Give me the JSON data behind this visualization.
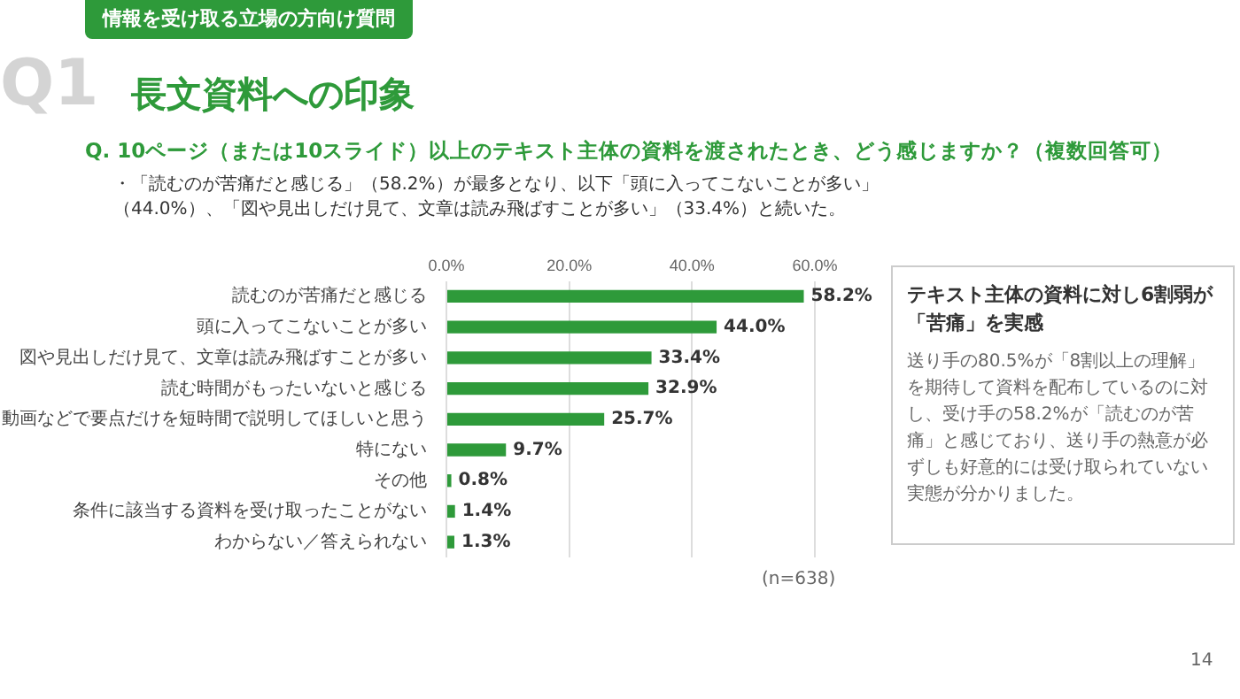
{
  "chart_data": {
    "type": "bar",
    "orientation": "horizontal",
    "title": "長文資料への印象",
    "subtitle": "Q. 10ページ（または10スライド）以上のテキスト主体の資料を渡されたとき、どう感じますか？（複数回答可）",
    "categories": [
      "読むのが苦痛だと感じる",
      "頭に入ってこないことが多い",
      "図や見出しだけ見て、文章は読み飛ばすことが多い",
      "読む時間がもったいないと感じる",
      "動画などで要点だけを短時間で説明してほしいと思う",
      "特にない",
      "その他",
      "条件に該当する資料を受け取ったことがない",
      "わからない／答えられない"
    ],
    "values": [
      58.2,
      44.0,
      33.4,
      32.9,
      25.7,
      9.7,
      0.8,
      1.4,
      1.3
    ],
    "value_labels": [
      "58.2%",
      "44.0%",
      "33.4%",
      "32.9%",
      "25.7%",
      "9.7%",
      "0.8%",
      "1.4%",
      "1.3%"
    ],
    "color": "#2e9a3a",
    "xlim": [
      0,
      60
    ],
    "xticks": [
      {
        "value": 0,
        "label": "0.0%"
      },
      {
        "value": 20,
        "label": "20.0%"
      },
      {
        "value": 40,
        "label": "40.0%"
      },
      {
        "value": 60,
        "label": "60.0%"
      }
    ],
    "grid": "x",
    "legend": false,
    "annotations": [
      "情報を受け取る立場の方向け質問",
      "Q1",
      "・「読むのが苦痛だと感じる」（58.2%）が最多となり、以下「頭に入ってこないことが多い」（44.0%）、「図や見出しだけ見て、文章は読み飛ばすことが多い」（33.4%）と続いた。",
      "テキスト主体の資料に対し6割弱が「苦痛」を実感",
      "送り手の80.5%が「8割以上の理解」を期待して資料を配布しているのに対し、受け手の58.2%が「読むのが苦痛」と感じており、送り手の熱意が必ずしも好意的には受け取られていない実態が分かりました。",
      "(n=638)",
      "14"
    ]
  }
}
